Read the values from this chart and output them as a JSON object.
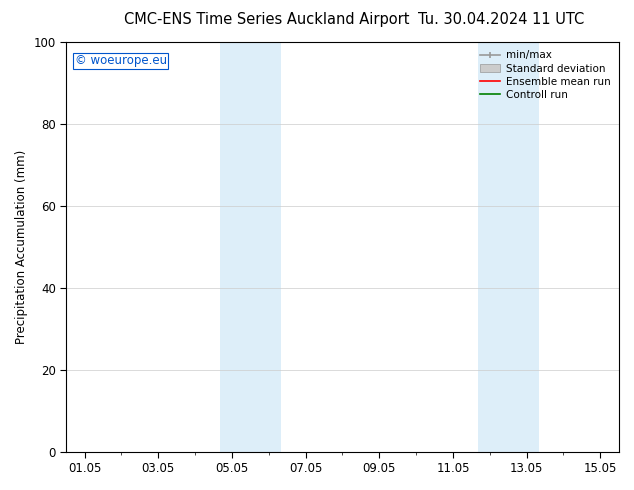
{
  "title_left": "CMC-ENS Time Series Auckland Airport",
  "title_right": "Tu. 30.04.2024 11 UTC",
  "ylabel": "Precipitation Accumulation (mm)",
  "watermark": "© woeurope.eu",
  "watermark_color": "#0055cc",
  "ylim": [
    0,
    100
  ],
  "xtick_labels": [
    "01.05",
    "03.05",
    "05.05",
    "07.05",
    "09.05",
    "11.05",
    "13.05",
    "15.05"
  ],
  "xtick_positions": [
    0,
    2,
    4,
    6,
    8,
    10,
    12,
    14
  ],
  "shaded_bands": [
    {
      "x_start": 3.67,
      "x_end": 5.33,
      "color": "#ddeef9"
    },
    {
      "x_start": 10.67,
      "x_end": 12.33,
      "color": "#ddeef9"
    }
  ],
  "legend_entries": [
    {
      "label": "min/max",
      "color": "#999999",
      "lw": 1.2,
      "style": "minmax"
    },
    {
      "label": "Standard deviation",
      "color": "#cccccc",
      "lw": 6,
      "style": "bar"
    },
    {
      "label": "Ensemble mean run",
      "color": "#ff0000",
      "lw": 1.2,
      "style": "line"
    },
    {
      "label": "Controll run",
      "color": "#008000",
      "lw": 1.2,
      "style": "line"
    }
  ],
  "bg_color": "#ffffff",
  "plot_bg_color": "#ffffff",
  "grid_color": "#cccccc",
  "spine_color": "#000000",
  "title_fontsize": 10.5,
  "label_fontsize": 8.5,
  "tick_fontsize": 8.5,
  "legend_fontsize": 7.5,
  "yticks": [
    0,
    20,
    40,
    60,
    80,
    100
  ]
}
